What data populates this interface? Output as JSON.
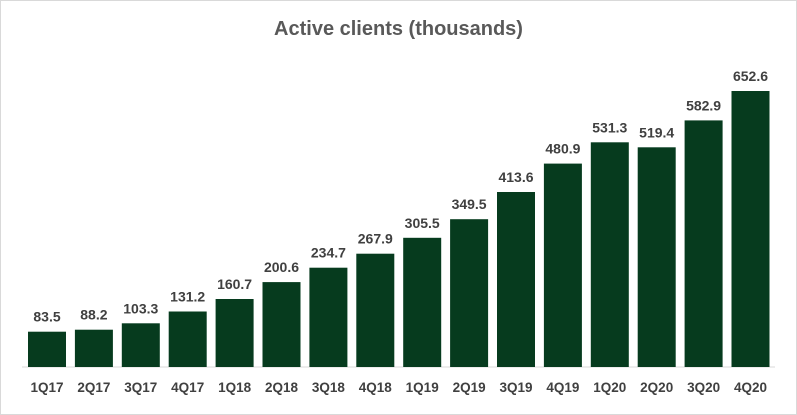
{
  "chart_data": {
    "type": "bar",
    "title": "Active clients (thousands)",
    "xlabel": "",
    "ylabel": "",
    "categories": [
      "1Q17",
      "2Q17",
      "3Q17",
      "4Q17",
      "1Q18",
      "2Q18",
      "3Q18",
      "4Q18",
      "1Q19",
      "2Q19",
      "3Q19",
      "4Q19",
      "1Q20",
      "2Q20",
      "3Q20",
      "4Q20"
    ],
    "values": [
      83.5,
      88.2,
      103.3,
      131.2,
      160.7,
      200.6,
      234.7,
      267.9,
      305.5,
      349.5,
      413.6,
      480.9,
      531.3,
      519.4,
      582.9,
      652.6
    ],
    "value_labels": [
      "83.5",
      "88.2",
      "103.3",
      "131.2",
      "160.7",
      "200.6",
      "234.7",
      "267.9",
      "305.5",
      "349.5",
      "413.6",
      "480.9",
      "531.3",
      "519.4",
      "582.9",
      "652.6"
    ],
    "ylim": [
      0,
      700
    ],
    "grid": false,
    "legend": "none",
    "bar_color": "#063b1e"
  }
}
